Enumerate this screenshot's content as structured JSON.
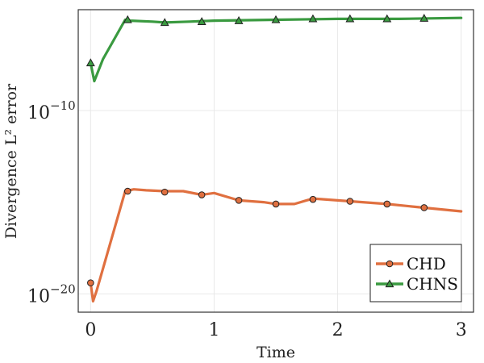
{
  "chart_data": {
    "type": "line",
    "xlabel": "Time",
    "ylabel": "Divergence L² error",
    "y_scale": "log",
    "xlim": [
      -0.1,
      3.1
    ],
    "ylim_exp": [
      -21,
      -4.5
    ],
    "x_ticks": [
      0,
      1,
      2,
      3
    ],
    "y_ticks": [
      {
        "base": "10",
        "exponent": "−10",
        "exp_value": -10
      },
      {
        "base": "10",
        "exponent": "−20",
        "exp_value": -20
      }
    ],
    "grid": true,
    "legend_position": "bottom-right",
    "series": [
      {
        "name": "CHD",
        "color": "#e07040",
        "marker": "circle",
        "line_points": [
          [
            0.0,
            -19.4
          ],
          [
            0.02,
            -20.4
          ],
          [
            0.05,
            -19.8
          ],
          [
            0.28,
            -14.4
          ],
          [
            0.35,
            -14.3
          ],
          [
            0.45,
            -14.35
          ],
          [
            0.6,
            -14.4
          ],
          [
            0.75,
            -14.4
          ],
          [
            0.9,
            -14.6
          ],
          [
            1.0,
            -14.5
          ],
          [
            1.2,
            -14.9
          ],
          [
            1.4,
            -15.0
          ],
          [
            1.5,
            -15.1
          ],
          [
            1.65,
            -15.1
          ],
          [
            1.8,
            -14.8
          ],
          [
            2.0,
            -14.9
          ],
          [
            2.2,
            -15.0
          ],
          [
            2.4,
            -15.1
          ],
          [
            2.7,
            -15.3
          ],
          [
            3.0,
            -15.5
          ]
        ],
        "marker_points": [
          [
            0.0,
            -19.4
          ],
          [
            0.3,
            -14.4
          ],
          [
            0.6,
            -14.45
          ],
          [
            0.9,
            -14.6
          ],
          [
            1.2,
            -14.9
          ],
          [
            1.5,
            -15.1
          ],
          [
            1.8,
            -14.85
          ],
          [
            2.1,
            -14.95
          ],
          [
            2.4,
            -15.1
          ],
          [
            2.7,
            -15.3
          ]
        ]
      },
      {
        "name": "CHNS",
        "color": "#3a9a40",
        "marker": "triangle",
        "line_points": [
          [
            0.0,
            -7.4
          ],
          [
            0.03,
            -8.4
          ],
          [
            0.1,
            -7.2
          ],
          [
            0.28,
            -5.05
          ],
          [
            0.32,
            -5.1
          ],
          [
            0.5,
            -5.15
          ],
          [
            0.6,
            -5.2
          ],
          [
            0.8,
            -5.15
          ],
          [
            1.0,
            -5.1
          ],
          [
            1.5,
            -5.05
          ],
          [
            2.0,
            -5.0
          ],
          [
            2.5,
            -5.0
          ],
          [
            3.0,
            -4.95
          ]
        ],
        "marker_points": [
          [
            0.0,
            -7.4
          ],
          [
            0.3,
            -5.05
          ],
          [
            0.6,
            -5.2
          ],
          [
            0.9,
            -5.15
          ],
          [
            1.2,
            -5.1
          ],
          [
            1.5,
            -5.05
          ],
          [
            1.8,
            -5.0
          ],
          [
            2.1,
            -5.0
          ],
          [
            2.4,
            -5.0
          ],
          [
            2.7,
            -4.97
          ]
        ]
      }
    ]
  }
}
